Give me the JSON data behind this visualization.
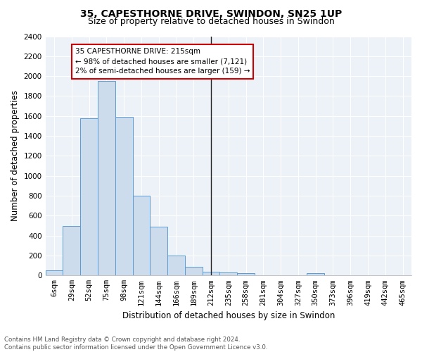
{
  "title": "35, CAPESTHORNE DRIVE, SWINDON, SN25 1UP",
  "subtitle": "Size of property relative to detached houses in Swindon",
  "xlabel": "Distribution of detached houses by size in Swindon",
  "ylabel": "Number of detached properties",
  "categories": [
    "6sqm",
    "29sqm",
    "52sqm",
    "75sqm",
    "98sqm",
    "121sqm",
    "144sqm",
    "166sqm",
    "189sqm",
    "212sqm",
    "235sqm",
    "258sqm",
    "281sqm",
    "304sqm",
    "327sqm",
    "350sqm",
    "373sqm",
    "396sqm",
    "419sqm",
    "442sqm",
    "465sqm"
  ],
  "bar_heights": [
    50,
    500,
    1580,
    1950,
    1590,
    800,
    490,
    200,
    90,
    40,
    30,
    20,
    0,
    0,
    0,
    20,
    0,
    0,
    0,
    0,
    0
  ],
  "bar_color": "#cddcec",
  "bar_edge_color": "#5b9bd5",
  "vline_color": "#222222",
  "annotation_text": "35 CAPESTHORNE DRIVE: 215sqm\n← 98% of detached houses are smaller (7,121)\n2% of semi-detached houses are larger (159) →",
  "annotation_box_color": "#ffffff",
  "annotation_box_edge": "#cc0000",
  "ylim": [
    0,
    2400
  ],
  "yticks": [
    0,
    200,
    400,
    600,
    800,
    1000,
    1200,
    1400,
    1600,
    1800,
    2000,
    2200,
    2400
  ],
  "background_color": "#edf2f8",
  "footer_text": "Contains HM Land Registry data © Crown copyright and database right 2024.\nContains public sector information licensed under the Open Government Licence v3.0.",
  "title_fontsize": 10,
  "subtitle_fontsize": 9,
  "xlabel_fontsize": 8.5,
  "ylabel_fontsize": 8.5,
  "tick_fontsize": 7.5,
  "annot_fontsize": 7.5,
  "footer_fontsize": 6.2
}
